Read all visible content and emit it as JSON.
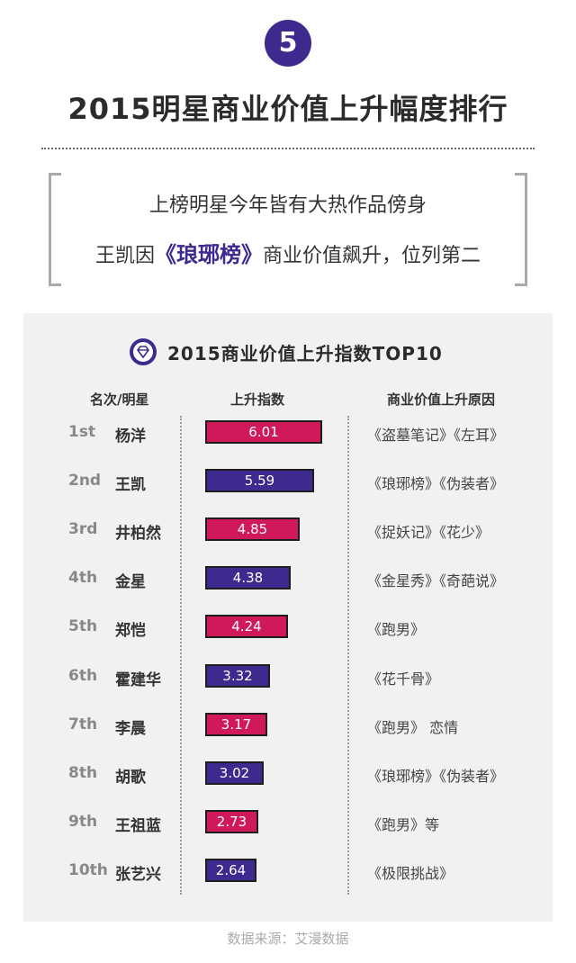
{
  "header": {
    "number": "5",
    "title": "2015明星商业价值上升幅度排行"
  },
  "intro": {
    "line1": "上榜明星今年皆有大热作品傍身",
    "line2_before": "王凯因",
    "line2_highlight": "《琅琊榜》",
    "line2_after": "商业价值飙升，位列第二"
  },
  "panel": {
    "title": "2015商业价值上升指数TOP10",
    "icon": "diamond-icon",
    "col_rank": "名次/明星",
    "col_index": "上升指数",
    "col_reason": "商业价值上升原因"
  },
  "colors": {
    "accent": "#3e2a8f",
    "bar_red": "#d0195a",
    "bar_purple": "#3e2a8f"
  },
  "chart_data": {
    "type": "bar",
    "title": "2015商业价值上升指数TOP10",
    "ylabel": "上升指数",
    "rows": [
      {
        "rank": "1st",
        "name": "杨洋",
        "value": 6.01,
        "label": "6.01",
        "reason": "《盗墓笔记》《左耳》",
        "color": "#d0195a"
      },
      {
        "rank": "2nd",
        "name": "王凯",
        "value": 5.59,
        "label": "5.59",
        "reason": "《琅琊榜》《伪装者》",
        "color": "#3e2a8f"
      },
      {
        "rank": "3rd",
        "name": "井柏然",
        "value": 4.85,
        "label": "4.85",
        "reason": "《捉妖记》《花少》",
        "color": "#d0195a"
      },
      {
        "rank": "4th",
        "name": "金星",
        "value": 4.38,
        "label": "4.38",
        "reason": "《金星秀》《奇葩说》",
        "color": "#3e2a8f"
      },
      {
        "rank": "5th",
        "name": "郑恺",
        "value": 4.24,
        "label": "4.24",
        "reason": "《跑男》",
        "color": "#d0195a"
      },
      {
        "rank": "6th",
        "name": "霍建华",
        "value": 3.32,
        "label": "3.32",
        "reason": "《花千骨》",
        "color": "#3e2a8f"
      },
      {
        "rank": "7th",
        "name": "李晨",
        "value": 3.17,
        "label": "3.17",
        "reason": "《跑男》 恋情",
        "color": "#d0195a"
      },
      {
        "rank": "8th",
        "name": "胡歌",
        "value": 3.02,
        "label": "3.02",
        "reason": "《琅琊榜》《伪装者》",
        "color": "#3e2a8f"
      },
      {
        "rank": "9th",
        "name": "王祖蓝",
        "value": 2.73,
        "label": "2.73",
        "reason": "《跑男》等",
        "color": "#d0195a"
      },
      {
        "rank": "10th",
        "name": "张艺兴",
        "value": 2.64,
        "label": "2.64",
        "reason": "《极限挑战》",
        "color": "#3e2a8f"
      }
    ]
  },
  "footer": {
    "source": "数据来源：艾漫数据"
  }
}
